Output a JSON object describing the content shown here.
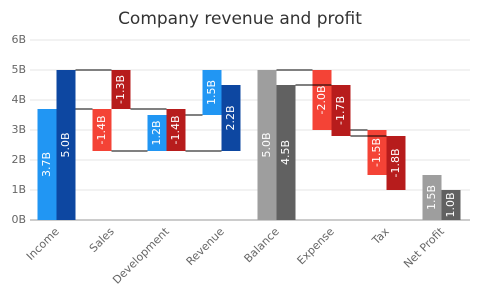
{
  "chart_data": {
    "type": "waterfall",
    "title": "Company revenue and profit",
    "categories": [
      "Income",
      "Sales",
      "Development",
      "Revenue",
      "Balance",
      "Expense",
      "Tax",
      "Net Profit"
    ],
    "sum_points": [
      false,
      false,
      false,
      false,
      true,
      false,
      false,
      true
    ],
    "series": [
      {
        "values": [
          3.7,
          -1.4,
          1.2,
          1.5,
          5.0,
          -2.0,
          -1.5,
          1.5
        ],
        "value_labels": [
          "3.7B",
          "-1.4B",
          "1.2B",
          "1.5B",
          "5.0B",
          "-2.0B",
          "-1.5B",
          "1.5B"
        ],
        "colors": {
          "increase": "#2196f3",
          "decrease": "#f44336",
          "total": "#9e9e9e"
        }
      },
      {
        "values": [
          5.0,
          -1.3,
          -1.4,
          2.2,
          4.5,
          -1.7,
          -1.8,
          1.0
        ],
        "value_labels": [
          "5.0B",
          "-1.3B",
          "-1.4B",
          "2.2B",
          "4.5B",
          "-1.7B",
          "-1.8B",
          "1.0B"
        ],
        "colors": {
          "increase": "#0d47a1",
          "decrease": "#b71c1c",
          "total": "#616161"
        }
      }
    ],
    "ylim": [
      0,
      6
    ],
    "yticks": [
      {
        "value": 0,
        "label": "0B"
      },
      {
        "value": 1,
        "label": "1B"
      },
      {
        "value": 2,
        "label": "2B"
      },
      {
        "value": 3,
        "label": "3B"
      },
      {
        "value": 4,
        "label": "4B"
      },
      {
        "value": 5,
        "label": "5B"
      },
      {
        "value": 6,
        "label": "6B"
      }
    ],
    "grid": true
  }
}
